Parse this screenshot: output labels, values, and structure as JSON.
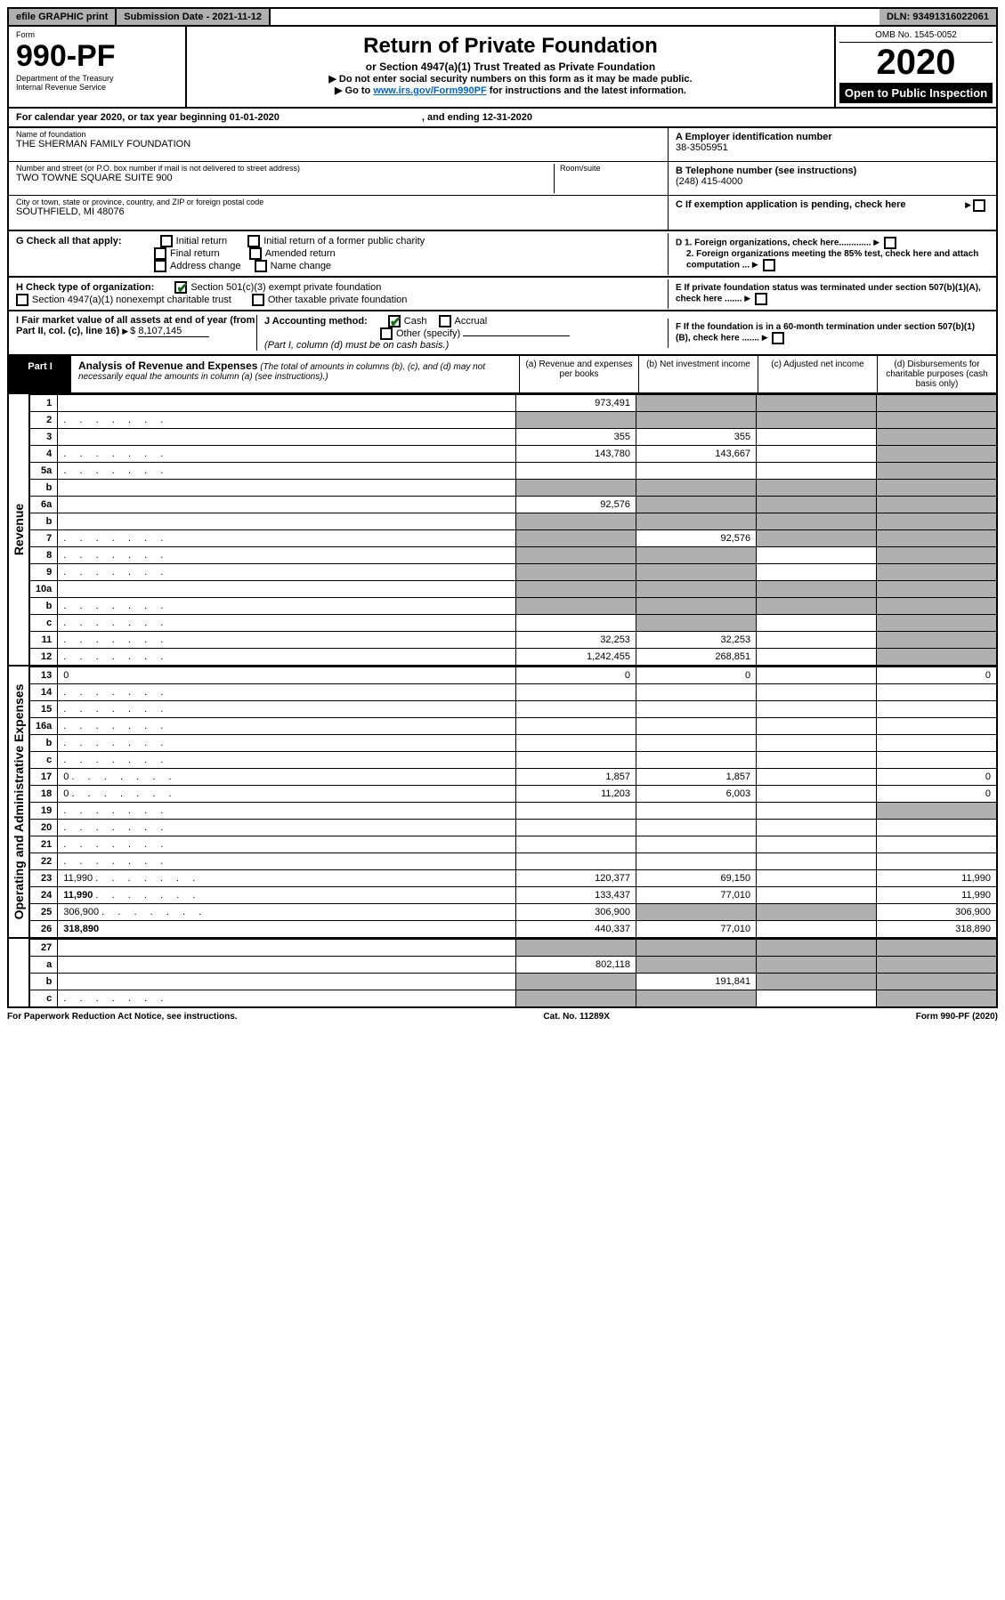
{
  "topbar": {
    "efile": "efile GRAPHIC print",
    "subm_label": "Submission Date - ",
    "subm_date": "2021-11-12",
    "dln_label": "DLN: ",
    "dln": "93491316022061"
  },
  "header": {
    "form_word": "Form",
    "form_no": "990-PF",
    "dept1": "Department of the Treasury",
    "dept2": "Internal Revenue Service",
    "title": "Return of Private Foundation",
    "subtitle": "or Section 4947(a)(1) Trust Treated as Private Foundation",
    "instr1": "▶ Do not enter social security numbers on this form as it may be made public.",
    "instr2_pre": "▶ Go to ",
    "instr2_link": "www.irs.gov/Form990PF",
    "instr2_post": " for instructions and the latest information.",
    "omb": "OMB No. 1545-0052",
    "year": "2020",
    "open": "Open to Public Inspection"
  },
  "calyear": {
    "text": "For calendar year 2020, or tax year beginning 01-01-2020",
    "end": ", and ending 12-31-2020"
  },
  "ident": {
    "name_lbl": "Name of foundation",
    "name": "THE SHERMAN FAMILY FOUNDATION",
    "addr_lbl": "Number and street (or P.O. box number if mail is not delivered to street address)",
    "addr": "TWO TOWNE SQUARE SUITE 900",
    "room_lbl": "Room/suite",
    "city_lbl": "City or town, state or province, country, and ZIP or foreign postal code",
    "city": "SOUTHFIELD, MI  48076",
    "ein_lbl": "A Employer identification number",
    "ein": "38-3505951",
    "tel_lbl": "B Telephone number (see instructions)",
    "tel": "(248) 415-4000",
    "c_lbl": "C If exemption application is pending, check here"
  },
  "g": {
    "label": "G Check all that apply:",
    "opts": [
      "Initial return",
      "Initial return of a former public charity",
      "Final return",
      "Amended return",
      "Address change",
      "Name change"
    ]
  },
  "h": {
    "label": "H Check type of organization:",
    "o1": "Section 501(c)(3) exempt private foundation",
    "o2": "Section 4947(a)(1) nonexempt charitable trust",
    "o3": "Other taxable private foundation"
  },
  "d": {
    "d1": "D 1. Foreign organizations, check here.............",
    "d2": "2. Foreign organizations meeting the 85% test, check here and attach computation ..."
  },
  "e": "E  If private foundation status was terminated under section 507(b)(1)(A), check here .......",
  "f": "F  If the foundation is in a 60-month termination under section 507(b)(1)(B), check here .......",
  "i": {
    "label": "I Fair market value of all assets at end of year (from Part II, col. (c), line 16)",
    "val": "8,107,145"
  },
  "j": {
    "label": "J Accounting method:",
    "cash": "Cash",
    "accrual": "Accrual",
    "other": "Other (specify)",
    "note": "(Part I, column (d) must be on cash basis.)"
  },
  "part1": {
    "tab": "Part I",
    "title": "Analysis of Revenue and Expenses",
    "note": "(The total of amounts in columns (b), (c), and (d) may not necessarily equal the amounts in column (a) (see instructions).)",
    "ca": "(a)   Revenue and expenses per books",
    "cb": "(b)   Net investment income",
    "cc": "(c)  Adjusted net income",
    "cd": "(d)  Disbursements for charitable purposes (cash basis only)"
  },
  "side": {
    "rev": "Revenue",
    "exp": "Operating and Administrative Expenses"
  },
  "lines": [
    {
      "n": "1",
      "d": "",
      "a": "973,491",
      "b": "",
      "c": "",
      "bs": true,
      "cs": true,
      "ds": true
    },
    {
      "n": "2",
      "d": "",
      "dots": true,
      "a": "",
      "b": "",
      "c": "",
      "as": true,
      "bs": true,
      "cs": true,
      "ds": true
    },
    {
      "n": "3",
      "d": "",
      "a": "355",
      "b": "355",
      "c": "",
      "ds": true
    },
    {
      "n": "4",
      "d": "",
      "dots": true,
      "a": "143,780",
      "b": "143,667",
      "c": "",
      "ds": true
    },
    {
      "n": "5a",
      "d": "",
      "dots": true,
      "a": "",
      "b": "",
      "c": "",
      "ds": true
    },
    {
      "n": "b",
      "d": "",
      "a": "",
      "b": "",
      "c": "",
      "as": true,
      "bs": true,
      "cs": true,
      "ds": true
    },
    {
      "n": "6a",
      "d": "",
      "a": "92,576",
      "b": "",
      "c": "",
      "bs": true,
      "cs": true,
      "ds": true
    },
    {
      "n": "b",
      "d": "",
      "a": "",
      "b": "",
      "c": "",
      "as": true,
      "bs": true,
      "cs": true,
      "ds": true
    },
    {
      "n": "7",
      "d": "",
      "dots": true,
      "a": "",
      "b": "92,576",
      "c": "",
      "as": true,
      "cs": true,
      "ds": true
    },
    {
      "n": "8",
      "d": "",
      "dots": true,
      "a": "",
      "b": "",
      "c": "",
      "as": true,
      "bs": true,
      "ds": true
    },
    {
      "n": "9",
      "d": "",
      "dots": true,
      "a": "",
      "b": "",
      "c": "",
      "as": true,
      "bs": true,
      "ds": true
    },
    {
      "n": "10a",
      "d": "",
      "a": "",
      "b": "",
      "c": "",
      "as": true,
      "bs": true,
      "cs": true,
      "ds": true
    },
    {
      "n": "b",
      "d": "",
      "dots": true,
      "a": "",
      "b": "",
      "c": "",
      "as": true,
      "bs": true,
      "cs": true,
      "ds": true
    },
    {
      "n": "c",
      "d": "",
      "dots": true,
      "a": "",
      "b": "",
      "c": "",
      "bs": true,
      "ds": true
    },
    {
      "n": "11",
      "d": "",
      "dots": true,
      "a": "32,253",
      "b": "32,253",
      "c": "",
      "ds": true
    },
    {
      "n": "12",
      "d": "",
      "dots": true,
      "bold": true,
      "a": "1,242,455",
      "b": "268,851",
      "c": "",
      "ds": true
    }
  ],
  "exp_lines": [
    {
      "n": "13",
      "d": "0",
      "a": "0",
      "b": "0",
      "c": ""
    },
    {
      "n": "14",
      "d": "",
      "dots": true,
      "a": "",
      "b": "",
      "c": ""
    },
    {
      "n": "15",
      "d": "",
      "dots": true,
      "a": "",
      "b": "",
      "c": ""
    },
    {
      "n": "16a",
      "d": "",
      "dots": true,
      "a": "",
      "b": "",
      "c": ""
    },
    {
      "n": "b",
      "d": "",
      "dots": true,
      "a": "",
      "b": "",
      "c": ""
    },
    {
      "n": "c",
      "d": "",
      "dots": true,
      "a": "",
      "b": "",
      "c": ""
    },
    {
      "n": "17",
      "d": "0",
      "dots": true,
      "a": "1,857",
      "b": "1,857",
      "c": ""
    },
    {
      "n": "18",
      "d": "0",
      "dots": true,
      "a": "11,203",
      "b": "6,003",
      "c": ""
    },
    {
      "n": "19",
      "d": "",
      "dots": true,
      "a": "",
      "b": "",
      "c": "",
      "ds": true
    },
    {
      "n": "20",
      "d": "",
      "dots": true,
      "a": "",
      "b": "",
      "c": ""
    },
    {
      "n": "21",
      "d": "",
      "dots": true,
      "a": "",
      "b": "",
      "c": ""
    },
    {
      "n": "22",
      "d": "",
      "dots": true,
      "a": "",
      "b": "",
      "c": ""
    },
    {
      "n": "23",
      "d": "11,990",
      "dots": true,
      "a": "120,377",
      "b": "69,150",
      "c": ""
    },
    {
      "n": "24",
      "d": "11,990",
      "dots": true,
      "bold": true,
      "a": "133,437",
      "b": "77,010",
      "c": ""
    },
    {
      "n": "25",
      "d": "306,900",
      "dots": true,
      "a": "306,900",
      "b": "",
      "c": "",
      "bs": true,
      "cs": true
    },
    {
      "n": "26",
      "d": "318,890",
      "bold": true,
      "a": "440,337",
      "b": "77,010",
      "c": ""
    }
  ],
  "net_lines": [
    {
      "n": "27",
      "d": "",
      "a": "",
      "b": "",
      "c": "",
      "as": true,
      "bs": true,
      "cs": true,
      "ds": true
    },
    {
      "n": "a",
      "d": "",
      "bold": true,
      "a": "802,118",
      "b": "",
      "c": "",
      "bs": true,
      "cs": true,
      "ds": true
    },
    {
      "n": "b",
      "d": "",
      "bold": true,
      "a": "",
      "b": "191,841",
      "c": "",
      "as": true,
      "cs": true,
      "ds": true
    },
    {
      "n": "c",
      "d": "",
      "dots": true,
      "bold": true,
      "a": "",
      "b": "",
      "c": "",
      "as": true,
      "bs": true,
      "ds": true
    }
  ],
  "footer": {
    "left": "For Paperwork Reduction Act Notice, see instructions.",
    "mid": "Cat. No. 11289X",
    "right": "Form 990-PF (2020)"
  }
}
